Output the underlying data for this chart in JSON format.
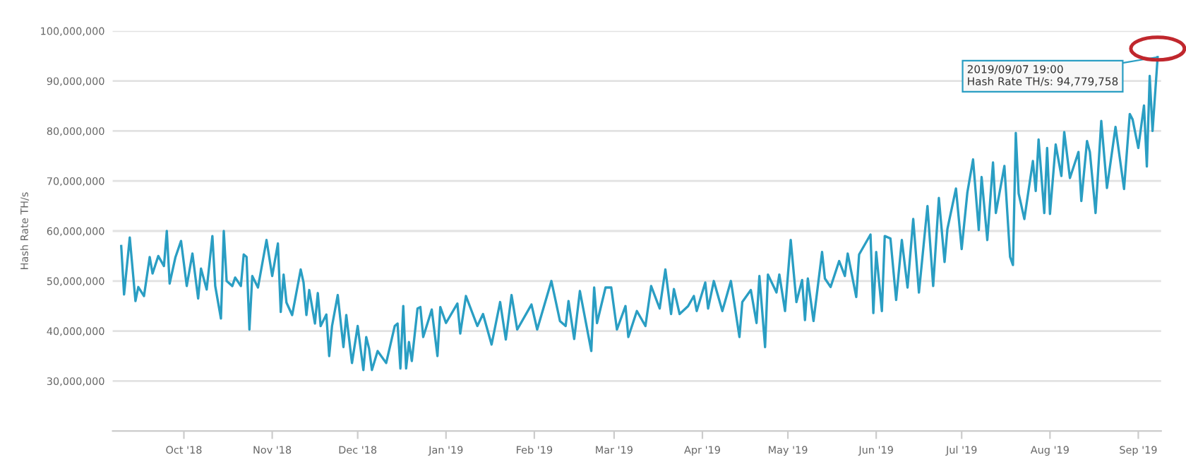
{
  "chart_data": {
    "type": "line",
    "ylabel": "Hash Rate TH/s",
    "x": [
      "2018-09-09",
      "2018-09-10",
      "2018-09-12",
      "2018-09-14",
      "2018-09-15",
      "2018-09-17",
      "2018-09-19",
      "2018-09-20",
      "2018-09-22",
      "2018-09-24",
      "2018-09-25",
      "2018-09-26",
      "2018-09-28",
      "2018-09-30",
      "2018-10-02",
      "2018-10-04",
      "2018-10-06",
      "2018-10-07",
      "2018-10-09",
      "2018-10-11",
      "2018-10-12",
      "2018-10-14",
      "2018-10-15",
      "2018-10-16",
      "2018-10-18",
      "2018-10-19",
      "2018-10-21",
      "2018-10-22",
      "2018-10-23",
      "2018-10-24",
      "2018-10-25",
      "2018-10-27",
      "2018-10-30",
      "2018-11-01",
      "2018-11-03",
      "2018-11-04",
      "2018-11-05",
      "2018-11-06",
      "2018-11-08",
      "2018-11-11",
      "2018-11-12",
      "2018-11-13",
      "2018-11-14",
      "2018-11-16",
      "2018-11-17",
      "2018-11-18",
      "2018-11-20",
      "2018-11-21",
      "2018-11-22",
      "2018-11-24",
      "2018-11-26",
      "2018-11-27",
      "2018-11-29",
      "2018-12-01",
      "2018-12-03",
      "2018-12-04",
      "2018-12-05",
      "2018-12-06",
      "2018-12-08",
      "2018-12-11",
      "2018-12-14",
      "2018-12-15",
      "2018-12-16",
      "2018-12-17",
      "2018-12-18",
      "2018-12-19",
      "2018-12-20",
      "2018-12-22",
      "2018-12-23",
      "2018-12-24",
      "2018-12-27",
      "2018-12-29",
      "2018-12-30",
      "2019-01-01",
      "2019-01-05",
      "2019-01-06",
      "2019-01-08",
      "2019-01-12",
      "2019-01-14",
      "2019-01-17",
      "2019-01-20",
      "2019-01-22",
      "2019-01-24",
      "2019-01-26",
      "2019-01-31",
      "2019-02-02",
      "2019-02-07",
      "2019-02-10",
      "2019-02-12",
      "2019-02-13",
      "2019-02-15",
      "2019-02-17",
      "2019-02-21",
      "2019-02-22",
      "2019-02-23",
      "2019-02-26",
      "2019-02-28",
      "2019-03-02",
      "2019-03-05",
      "2019-03-06",
      "2019-03-09",
      "2019-03-12",
      "2019-03-14",
      "2019-03-17",
      "2019-03-19",
      "2019-03-21",
      "2019-03-22",
      "2019-03-24",
      "2019-03-27",
      "2019-03-29",
      "2019-03-30",
      "2019-04-02",
      "2019-04-03",
      "2019-04-05",
      "2019-04-08",
      "2019-04-11",
      "2019-04-14",
      "2019-04-15",
      "2019-04-18",
      "2019-04-20",
      "2019-04-21",
      "2019-04-23",
      "2019-04-24",
      "2019-04-27",
      "2019-04-28",
      "2019-04-30",
      "2019-05-02",
      "2019-05-04",
      "2019-05-06",
      "2019-05-07",
      "2019-05-08",
      "2019-05-10",
      "2019-05-13",
      "2019-05-14",
      "2019-05-16",
      "2019-05-19",
      "2019-05-21",
      "2019-05-22",
      "2019-05-25",
      "2019-05-26",
      "2019-05-30",
      "2019-05-31",
      "2019-06-01",
      "2019-06-03",
      "2019-06-04",
      "2019-06-06",
      "2019-06-08",
      "2019-06-10",
      "2019-06-12",
      "2019-06-14",
      "2019-06-16",
      "2019-06-19",
      "2019-06-21",
      "2019-06-23",
      "2019-06-25",
      "2019-06-26",
      "2019-06-29",
      "2019-07-01",
      "2019-07-03",
      "2019-07-05",
      "2019-07-07",
      "2019-07-08",
      "2019-07-10",
      "2019-07-12",
      "2019-07-13",
      "2019-07-16",
      "2019-07-18",
      "2019-07-19",
      "2019-07-20",
      "2019-07-21",
      "2019-07-23",
      "2019-07-26",
      "2019-07-27",
      "2019-07-28",
      "2019-07-30",
      "2019-07-31",
      "2019-08-01",
      "2019-08-03",
      "2019-08-05",
      "2019-08-06",
      "2019-08-08",
      "2019-08-11",
      "2019-08-12",
      "2019-08-14",
      "2019-08-15",
      "2019-08-17",
      "2019-08-19",
      "2019-08-21",
      "2019-08-24",
      "2019-08-27",
      "2019-08-29",
      "2019-08-30",
      "2019-09-01",
      "2019-09-03",
      "2019-09-04",
      "2019-09-05",
      "2019-09-06",
      "2019-09-07T19:00"
    ],
    "series": [
      {
        "color": "#2a9ec3",
        "values": [
          57000000,
          47300000,
          58700000,
          46000000,
          48800000,
          47000000,
          54800000,
          51500000,
          55000000,
          53000000,
          60000000,
          49500000,
          54700000,
          58000000,
          49000000,
          55500000,
          46500000,
          52500000,
          48300000,
          59000000,
          49000000,
          42500000,
          60000000,
          50000000,
          49000000,
          50700000,
          49000000,
          55300000,
          54800000,
          40300000,
          51000000,
          48700000,
          58200000,
          51000000,
          57500000,
          43800000,
          51300000,
          45700000,
          43200000,
          52300000,
          49700000,
          43200000,
          48200000,
          41500000,
          47600000,
          41000000,
          43300000,
          35000000,
          41000000,
          47200000,
          36800000,
          43200000,
          33600000,
          41000000,
          32200000,
          38800000,
          36500000,
          32200000,
          36000000,
          33600000,
          41000000,
          41500000,
          32500000,
          45000000,
          32500000,
          37800000,
          34000000,
          44500000,
          44800000,
          38800000,
          44300000,
          35000000,
          44800000,
          41600000,
          45500000,
          39500000,
          47000000,
          41000000,
          43400000,
          37300000,
          45800000,
          38300000,
          47200000,
          40300000,
          45300000,
          40300000,
          50000000,
          42000000,
          41000000,
          46000000,
          38400000,
          48000000,
          36000000,
          48700000,
          41600000,
          48700000,
          48700000,
          40300000,
          45000000,
          38800000,
          44000000,
          41000000,
          49000000,
          44500000,
          52300000,
          43400000,
          48400000,
          43400000,
          45000000,
          47000000,
          44000000,
          49700000,
          44500000,
          50000000,
          44000000,
          50000000,
          38800000,
          45800000,
          48200000,
          41600000,
          51000000,
          36800000,
          51300000,
          47700000,
          51300000,
          44000000,
          58200000,
          45800000,
          50200000,
          42200000,
          50500000,
          42000000,
          55800000,
          50500000,
          48800000,
          54000000,
          51000000,
          55500000,
          46800000,
          55300000,
          59300000,
          43600000,
          55800000,
          44000000,
          59000000,
          58500000,
          46200000,
          58200000,
          48700000,
          62400000,
          47700000,
          65000000,
          49000000,
          66600000,
          53800000,
          60400000,
          68500000,
          56400000,
          67700000,
          74300000,
          60200000,
          70800000,
          58200000,
          73700000,
          63600000,
          73000000,
          54800000,
          53200000,
          79600000,
          67500000,
          62400000,
          74000000,
          68000000,
          78300000,
          63600000,
          76600000,
          63400000,
          77300000,
          71000000,
          79800000,
          70600000,
          75800000,
          66000000,
          78000000,
          75800000,
          63600000,
          82000000,
          68600000,
          80800000,
          68400000,
          83400000,
          82300000,
          76600000,
          85100000,
          72900000,
          91000000,
          80000000,
          94779758
        ]
      }
    ],
    "xlim": [
      "2018-09-06",
      "2019-09-09"
    ],
    "xticks": [
      {
        "value": "2018-10-01",
        "label": "Oct '18"
      },
      {
        "value": "2018-11-01",
        "label": "Nov '18"
      },
      {
        "value": "2018-12-01",
        "label": "Dec '18"
      },
      {
        "value": "2019-01-01",
        "label": "Jan '19"
      },
      {
        "value": "2019-02-01",
        "label": "Feb '19"
      },
      {
        "value": "2019-03-01",
        "label": "Mar '19"
      },
      {
        "value": "2019-04-01",
        "label": "Apr '19"
      },
      {
        "value": "2019-05-01",
        "label": "May '19"
      },
      {
        "value": "2019-06-01",
        "label": "Jun '19"
      },
      {
        "value": "2019-07-01",
        "label": "Jul '19"
      },
      {
        "value": "2019-08-01",
        "label": "Aug '19"
      },
      {
        "value": "2019-09-01",
        "label": "Sep '19"
      }
    ],
    "ylim": [
      20000000,
      100000000
    ],
    "yticks": [
      {
        "value": 30000000,
        "label": "30,000,000"
      },
      {
        "value": 40000000,
        "label": "40,000,000"
      },
      {
        "value": 50000000,
        "label": "50,000,000"
      },
      {
        "value": 60000000,
        "label": "60,000,000"
      },
      {
        "value": 70000000,
        "label": "70,000,000"
      },
      {
        "value": 80000000,
        "label": "80,000,000"
      },
      {
        "value": 90000000,
        "label": "90,000,000"
      },
      {
        "value": 100000000,
        "label": "100,000,000"
      }
    ],
    "grid": "y",
    "annotations": [
      {
        "text": "2019/09/07 19:00\nHash Rate TH/s: 94,779,758",
        "x": "2019-09-07T19:00",
        "y": 94779758
      }
    ]
  }
}
